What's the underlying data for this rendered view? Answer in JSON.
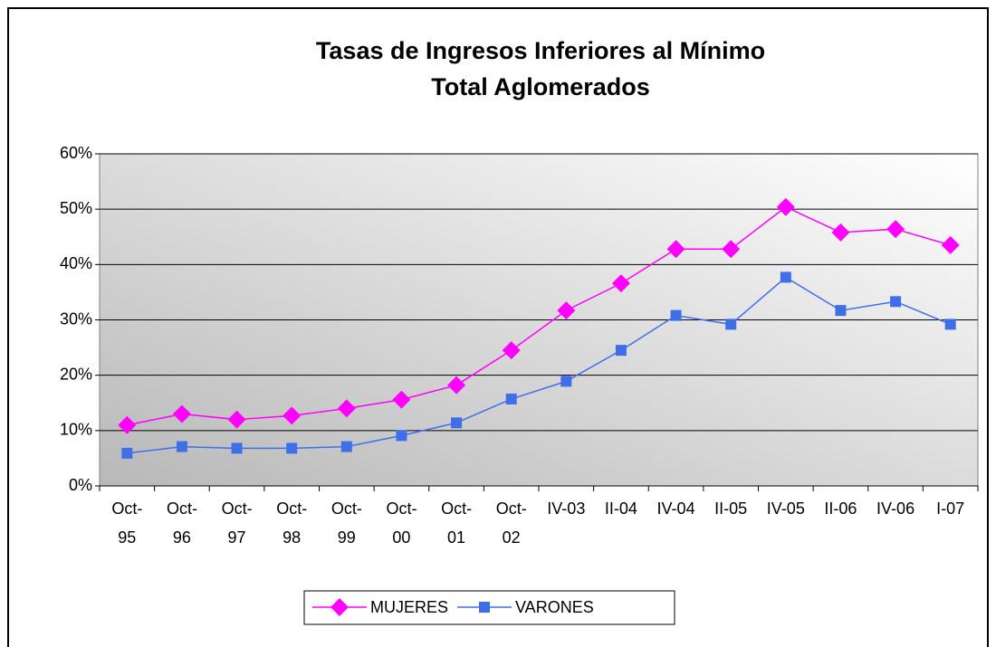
{
  "chart_data": {
    "type": "line",
    "title": "Tasas de Ingresos Inferiores al Mínimo",
    "subtitle": "Total Aglomerados",
    "categories": [
      "Oct-95",
      "Oct-96",
      "Oct-97",
      "Oct-98",
      "Oct-99",
      "Oct-00",
      "Oct-01",
      "Oct-02",
      "IV-03",
      "II-04",
      "IV-04",
      "II-05",
      "IV-05",
      "II-06",
      "IV-06",
      "I-07"
    ],
    "series": [
      {
        "name": "MUJERES",
        "color": "#ff00ff",
        "marker": "diamond",
        "values": [
          11,
          13,
          12,
          12.7,
          14,
          15.6,
          18.2,
          24.5,
          31.7,
          36.6,
          42.8,
          42.8,
          50.4,
          45.8,
          46.4,
          43.5
        ]
      },
      {
        "name": "VARONES",
        "color": "#3f6fe8",
        "marker": "square",
        "values": [
          5.9,
          7.1,
          6.8,
          6.8,
          7.1,
          9.1,
          11.4,
          15.7,
          18.9,
          24.5,
          30.8,
          29.2,
          37.7,
          31.7,
          33.3,
          29.2
        ]
      }
    ],
    "ylim": [
      0,
      60
    ],
    "yticks": [
      {
        "value": 0,
        "label": "0%"
      },
      {
        "value": 10,
        "label": "10%"
      },
      {
        "value": 20,
        "label": "20%"
      },
      {
        "value": 30,
        "label": "30%"
      },
      {
        "value": 40,
        "label": "40%"
      },
      {
        "value": 50,
        "label": "50%"
      },
      {
        "value": 60,
        "label": "60%"
      }
    ],
    "grid": true,
    "legend": "bottom"
  }
}
